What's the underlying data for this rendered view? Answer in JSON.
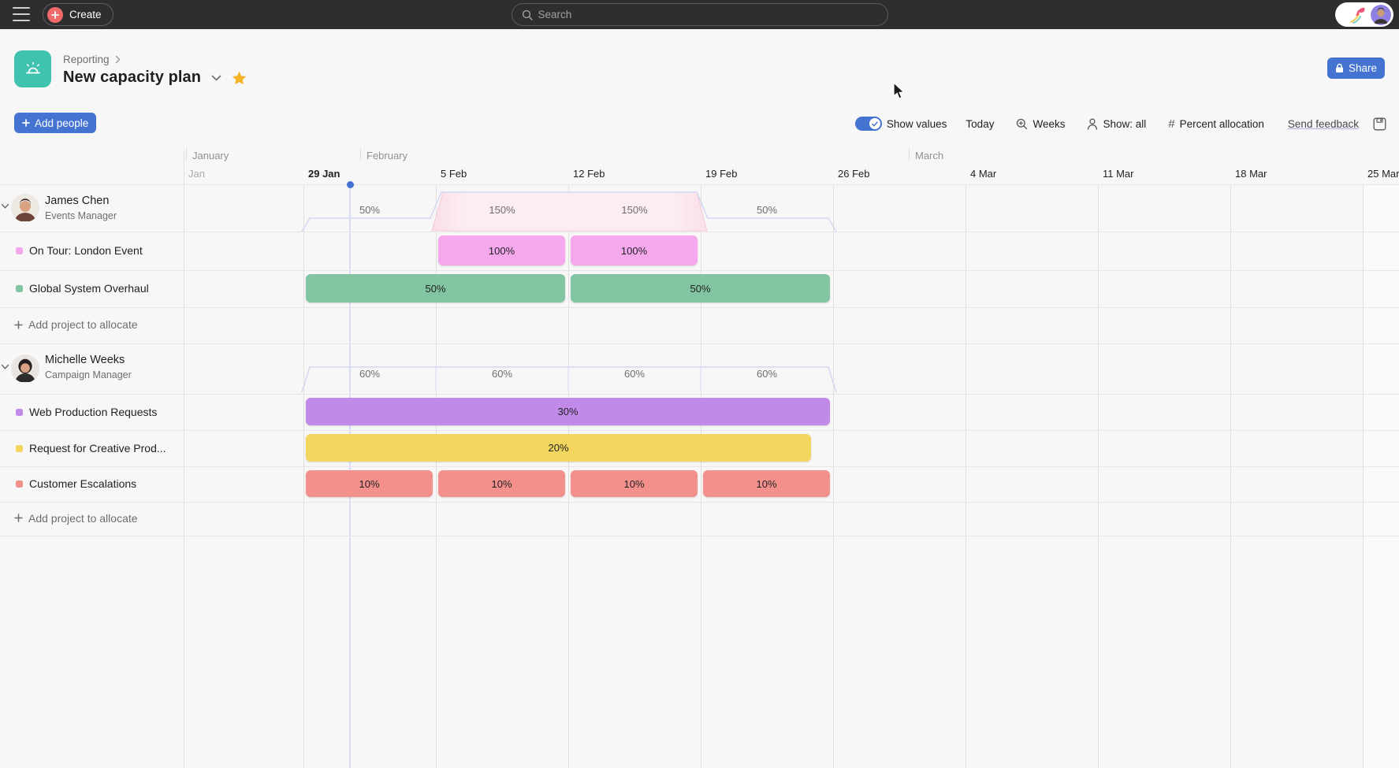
{
  "topbar": {
    "create_label": "Create",
    "search_placeholder": "Search"
  },
  "header": {
    "breadcrumb": "Reporting",
    "title": "New capacity plan",
    "share_label": "Share",
    "add_people_label": "Add people"
  },
  "toolbar": {
    "show_values": "Show values",
    "today": "Today",
    "weeks": "Weeks",
    "show_all": "Show: all",
    "hash": "#",
    "percent_allocation": "Percent allocation",
    "send_feedback": "Send feedback"
  },
  "timeline": {
    "months": [
      "January",
      "February",
      "March"
    ],
    "week_labels": [
      "Jan",
      "29 Jan",
      "5 Feb",
      "12 Feb",
      "19 Feb",
      "26 Feb",
      "4 Mar",
      "11 Mar",
      "18 Mar",
      "25 Mar"
    ],
    "today_color": "#4573d2",
    "accent_blue": "#4573d2"
  },
  "sections": [
    {
      "person": {
        "name": "James Chen",
        "role": "Events Manager"
      },
      "capacity_values": [
        "50%",
        "150%",
        "150%",
        "50%"
      ],
      "capacity_numeric": [
        50,
        150,
        150,
        50
      ],
      "projects": [
        {
          "name": "On Tour: London Event",
          "color": "#f5a9ec",
          "bars": [
            {
              "label": "100%",
              "start": 1,
              "span": 1
            },
            {
              "label": "100%",
              "start": 2,
              "span": 1
            }
          ]
        },
        {
          "name": "Global System Overhaul",
          "color": "#83c5a3",
          "bars": [
            {
              "label": "50%",
              "start": 0,
              "span": 2
            },
            {
              "label": "50%",
              "start": 2,
              "span": 2
            }
          ]
        }
      ],
      "add_label": "Add project to allocate"
    },
    {
      "person": {
        "name": "Michelle Weeks",
        "role": "Campaign Manager"
      },
      "capacity_values": [
        "60%",
        "60%",
        "60%",
        "60%"
      ],
      "capacity_numeric": [
        60,
        60,
        60,
        60
      ],
      "projects": [
        {
          "name": "Web Production Requests",
          "color": "#c18ae9",
          "bars": [
            {
              "label": "30%",
              "start": 0,
              "span": 4
            }
          ]
        },
        {
          "name": "Request for Creative Prod...",
          "color": "#f2d65e",
          "bars": [
            {
              "label": "20%",
              "start": 0,
              "span": 4,
              "trim": 24
            }
          ]
        },
        {
          "name": "Customer Escalations",
          "color": "#f3908c",
          "bars": [
            {
              "label": "10%",
              "start": 0,
              "span": 1
            },
            {
              "label": "10%",
              "start": 1,
              "span": 1
            },
            {
              "label": "10%",
              "start": 2,
              "span": 1
            },
            {
              "label": "10%",
              "start": 3,
              "span": 1
            }
          ]
        }
      ],
      "add_label": "Add project to allocate"
    }
  ]
}
